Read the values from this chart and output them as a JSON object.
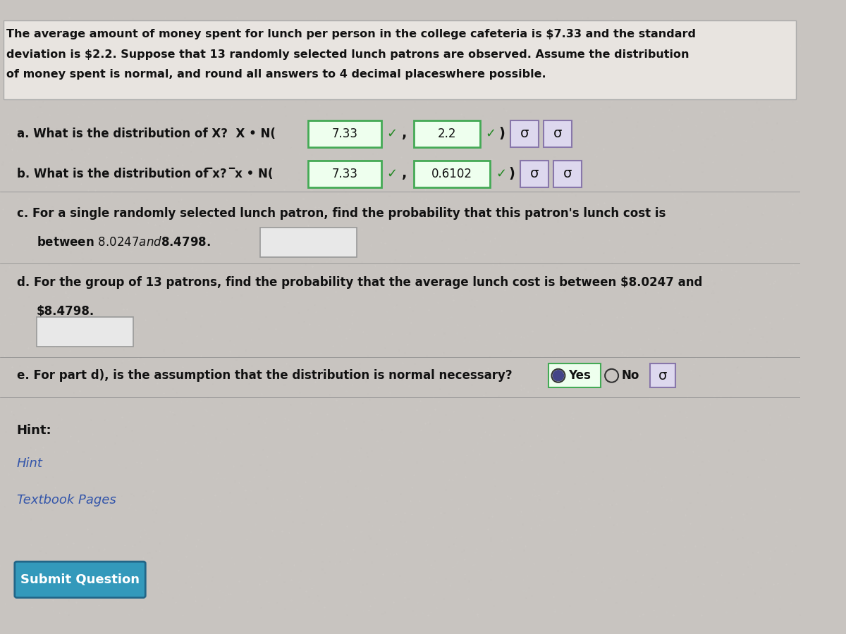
{
  "bg_color_top": "#d0ccc8",
  "bg_color_bottom": "#c8c4c0",
  "text_color": "#111111",
  "blue_link_color": "#3355aa",
  "intro_text_line1": "The average amount of money spent for lunch per person in the college cafeteria is $7.33 and the standard",
  "intro_text_line2": "deviation is $2.2. Suppose that 13 randomly selected lunch patrons are observed. Assume the distribution",
  "intro_text_line3": "of money spent is normal, and round all answers to 4 decimal placeswhere possible.",
  "part_a_text": "a. What is the distribution of X? X • N(",
  "part_a_val1": "7.33",
  "part_a_val2": "2.2",
  "part_b_text": "b. What is the distribution of ̅x? ̅x • N(",
  "part_b_val1": "7.33",
  "part_b_val2": "0.6102",
  "part_c_line1": "c. For a single randomly selected lunch patron, find the probability that this patron's lunch cost is",
  "part_c_line2": "   between $8.0247 and $8.4798.",
  "part_d_line1": "d. For the group of 13 patrons, find the probability that the average lunch cost is between $8.0247 and",
  "part_d_line2": "   $8.4798.",
  "part_e_text": "e. For part d), is the assumption that the distribution is normal necessary?",
  "hint_label": "Hint:",
  "hint_link": "Hint",
  "textbook_link": "Textbook Pages",
  "submit_label": "Submit Question",
  "submit_bg": "#3399bb",
  "white_color": "#ffffff",
  "green_border": "#44aa55",
  "green_bg": "#eeffee",
  "purple_border": "#8877aa",
  "purple_bg": "#ddd8ee",
  "answer_box_bg": "#e8e8e8",
  "answer_box_border": "#999999",
  "top_panel_bg": "#e8e4e0",
  "top_panel_border": "#aaaaaa",
  "yes_radio_fill": "#444488",
  "radio_border": "#333333"
}
